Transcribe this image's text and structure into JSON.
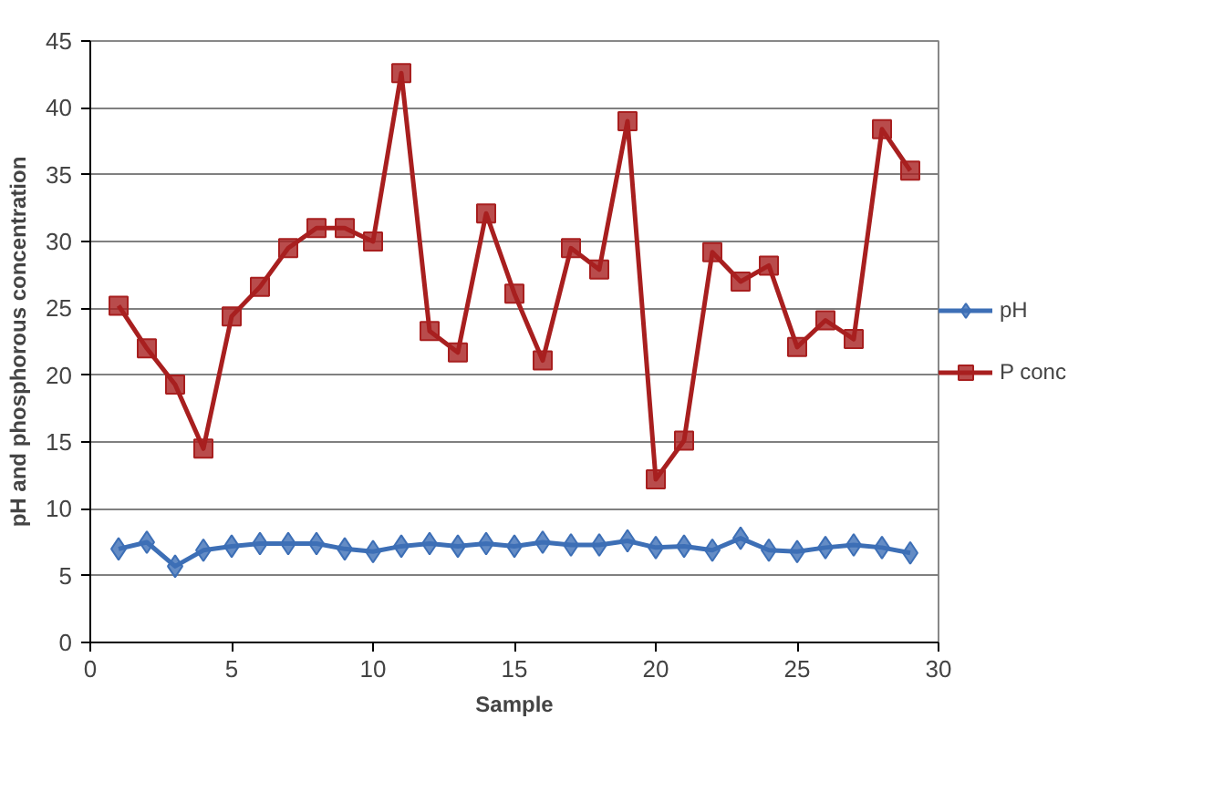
{
  "chart_data": {
    "type": "line",
    "xlabel": "Sample",
    "ylabel": "pH and phosphorous concentration",
    "x": [
      1,
      2,
      3,
      4,
      5,
      6,
      7,
      8,
      9,
      10,
      11,
      12,
      13,
      14,
      15,
      16,
      17,
      18,
      19,
      20,
      21,
      22,
      23,
      24,
      25,
      26,
      27,
      28,
      29
    ],
    "xlim": [
      0,
      30
    ],
    "xticks": [
      0,
      5,
      10,
      15,
      20,
      25,
      30
    ],
    "ylim": [
      0,
      45
    ],
    "yticks": [
      0,
      5,
      10,
      15,
      20,
      25,
      30,
      35,
      40,
      45
    ],
    "grid": "y",
    "legend": "right",
    "series": [
      {
        "name": "pH",
        "color": "#3d6fb6",
        "marker": "diamond",
        "values": [
          7,
          7.5,
          5.7,
          6.9,
          7.2,
          7.4,
          7.4,
          7.4,
          7,
          6.8,
          7.2,
          7.4,
          7.2,
          7.4,
          7.2,
          7.5,
          7.3,
          7.3,
          7.6,
          7.1,
          7.2,
          6.9,
          7.8,
          6.9,
          6.8,
          7.1,
          7.3,
          7.1,
          6.7
        ]
      },
      {
        "name": "P conc",
        "color": "#a81f1f",
        "marker": "square",
        "values": [
          25.2,
          22,
          19.3,
          14.5,
          24.4,
          26.6,
          29.5,
          31,
          31,
          30,
          42.6,
          23.3,
          21.7,
          32.1,
          26.1,
          21.1,
          29.5,
          27.9,
          39,
          12.2,
          15.1,
          29.2,
          27,
          28.2,
          22.1,
          24.1,
          22.7,
          38.4,
          35.3
        ]
      }
    ]
  }
}
